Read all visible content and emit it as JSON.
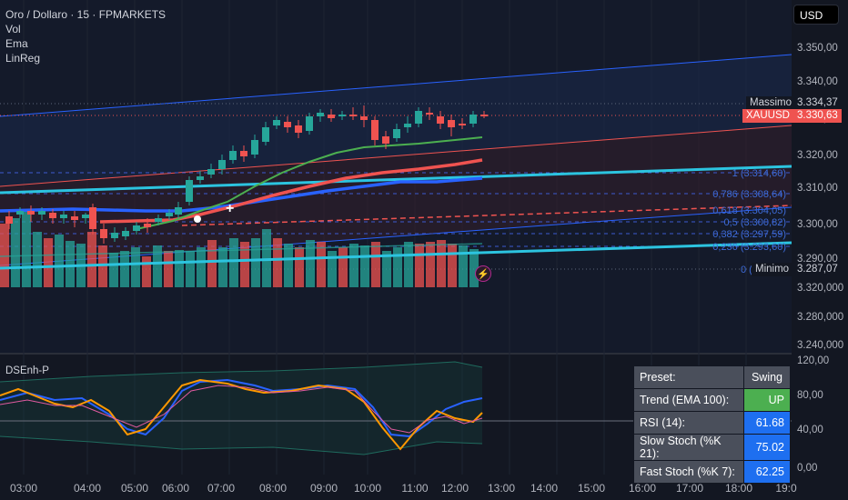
{
  "legend": {
    "title": "Oro / Dollaro · 15 · FPMARKETS",
    "vol": "Vol",
    "ema": "Ema",
    "linreg": "LinReg"
  },
  "currency": "USD",
  "price_axis": {
    "ticks": [
      "3.350,00",
      "3.340,00",
      "3.330,00",
      "3.320,00",
      "3.310,00",
      "3.300,00",
      "3.290,00",
      "3.320,000",
      "3.280,000",
      "3.240,000"
    ]
  },
  "osc_axis": {
    "ticks": [
      "120,00",
      "80,00",
      "40,00",
      "0,00"
    ]
  },
  "time_axis": {
    "ticks": [
      "03:00",
      "04:00",
      "05:00",
      "06:00",
      "07:00",
      "08:00",
      "09:00",
      "10:00",
      "11:00",
      "12:00",
      "13:00",
      "14:00",
      "15:00",
      "16:00",
      "17:00",
      "18:00",
      "19:0"
    ]
  },
  "tags": {
    "massimo_label": "Massimo",
    "massimo_value": "3.334,37",
    "symbol_label": "XAUUSD",
    "symbol_value": "3.330,63",
    "minimo_label": "Minimo",
    "minimo_value": "3.287,07"
  },
  "fib_levels": [
    {
      "ratio": "1",
      "price": "3.314,60",
      "text": "1 (3.314,60)"
    },
    {
      "ratio": "0,786",
      "price": "3.308,64",
      "text": "0,786 (3.308,64)"
    },
    {
      "ratio": "0,618",
      "price": "3.304,05",
      "text": "0,618 (3.304,05)"
    },
    {
      "ratio": "0,5",
      "price": "3.300,82",
      "text": "0,5 (3.300,82)"
    },
    {
      "ratio": "0,382",
      "price": "3.297,59",
      "text": "0,382 (3.297,59)"
    },
    {
      "ratio": "0,236",
      "price": "3.293,60",
      "text": "0,236 (3.293,60)"
    },
    {
      "ratio": "0",
      "price": "3.",
      "text": "0 (3."
    }
  ],
  "indicator": {
    "name": "DSEnh-P"
  },
  "stats_table": {
    "header": {
      "key": "Preset:",
      "value": "Swing"
    },
    "rows": [
      {
        "key": "Trend (EMA 100):",
        "value": "UP",
        "color": "#4caf50"
      },
      {
        "key": "RSI (14):",
        "value": "61.68",
        "color": "#1e6ff0"
      },
      {
        "key": "Slow Stoch (%K 21):",
        "value": "75.02",
        "color": "#1e6ff0"
      },
      {
        "key": "Fast Stoch (%K 7):",
        "value": "62.25",
        "color": "#1e6ff0"
      }
    ]
  },
  "colors": {
    "up": "#26a69a",
    "down": "#ef5350",
    "bg": "#131722",
    "cyan": "#2cc4e0",
    "blue": "#2962ff"
  },
  "icons": {
    "flash": "lightning-icon"
  }
}
